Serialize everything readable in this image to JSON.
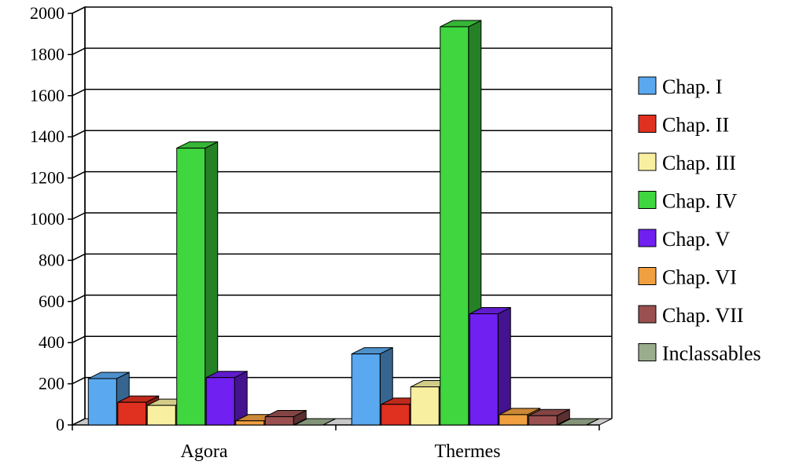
{
  "chart_data": {
    "type": "bar",
    "style": "3d-clustered-column",
    "categories": [
      "Agora",
      "Thermes"
    ],
    "series": [
      {
        "name": "Chap. I",
        "color": "#5aa9f0",
        "values": [
          225,
          345
        ]
      },
      {
        "name": "Chap. II",
        "color": "#e03020",
        "values": [
          110,
          100
        ]
      },
      {
        "name": "Chap. III",
        "color": "#f8f0a0",
        "values": [
          95,
          185
        ]
      },
      {
        "name": "Chap. IV",
        "color": "#3fd63f",
        "values": [
          1345,
          1935
        ]
      },
      {
        "name": "Chap. V",
        "color": "#7020f0",
        "values": [
          230,
          540
        ]
      },
      {
        "name": "Chap. VI",
        "color": "#f0a040",
        "values": [
          20,
          50
        ]
      },
      {
        "name": "Chap. VII",
        "color": "#9a5050",
        "values": [
          40,
          45
        ]
      },
      {
        "name": "Inclassables",
        "color": "#9aae8e",
        "values": [
          0,
          0
        ]
      }
    ],
    "ylim": [
      0,
      2000
    ],
    "yticks": [
      "0",
      "200",
      "400",
      "600",
      "800",
      "1000",
      "1200",
      "1400",
      "1600",
      "1800",
      "2000"
    ],
    "grid": true,
    "legend_position": "right",
    "title": "",
    "xlabel": "",
    "ylabel": ""
  }
}
